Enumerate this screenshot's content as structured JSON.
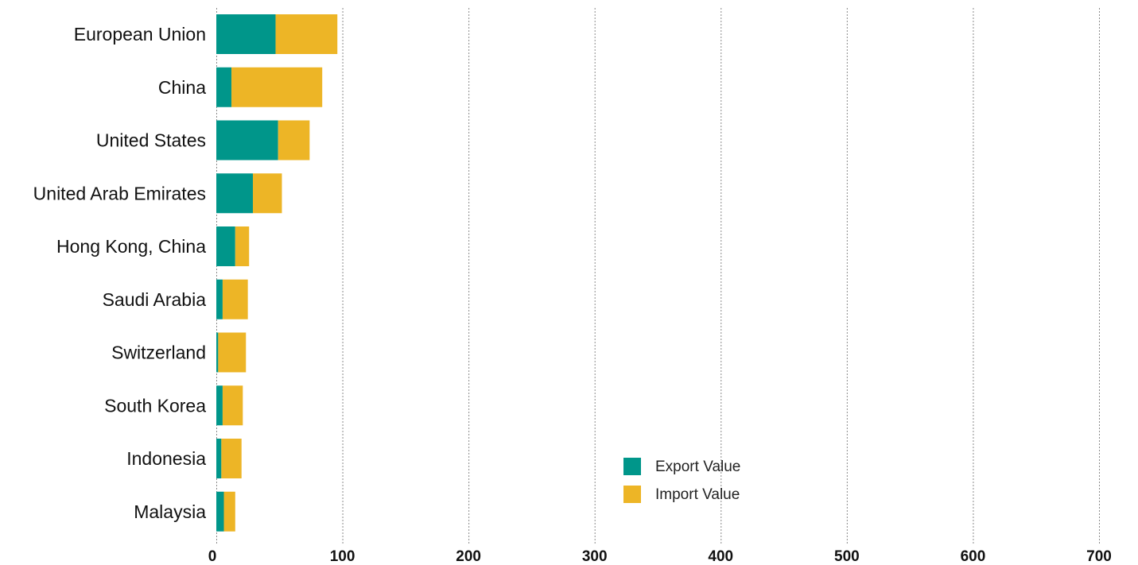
{
  "chart_data": {
    "type": "bar",
    "orientation": "horizontal",
    "stacked": true,
    "categories": [
      "European Union",
      "China",
      "United States",
      "United Arab Emirates",
      "Hong Kong, China",
      "Saudi Arabia",
      "Switzerland",
      "South Korea",
      "Indonesia",
      "Malaysia"
    ],
    "series": [
      {
        "name": "Export Value",
        "color": "#00968a",
        "values": [
          47,
          12,
          49,
          29,
          15,
          5,
          1.5,
          5,
          4,
          6
        ]
      },
      {
        "name": "Import Value",
        "color": "#edb526",
        "values": [
          49,
          72,
          25,
          23,
          11,
          20,
          22,
          16,
          16,
          9
        ]
      }
    ],
    "xticks": [
      "0",
      "100",
      "200",
      "300",
      "400",
      "500",
      "600",
      "700"
    ],
    "xlim": [
      0,
      700
    ],
    "grid": "vertical-dashed",
    "legend_position": "lower-center"
  }
}
